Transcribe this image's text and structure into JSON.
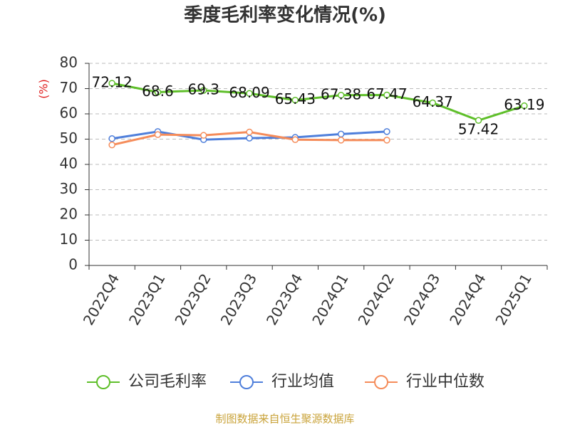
{
  "chart_data": {
    "type": "line",
    "title": "季度毛利率变化情况(%)",
    "y_label": "(%)",
    "categories": [
      "2022Q4",
      "2023Q1",
      "2023Q2",
      "2023Q3",
      "2023Q4",
      "2024Q1",
      "2024Q2",
      "2024Q3",
      "2024Q4",
      "2025Q1"
    ],
    "series": [
      {
        "name": "公司毛利率",
        "color": "#5fbf2a",
        "values": [
          72.12,
          68.6,
          69.3,
          68.09,
          65.43,
          67.38,
          67.47,
          64.37,
          57.42,
          63.19
        ],
        "show_labels": true
      },
      {
        "name": "行业均值",
        "color": "#4f7fdb",
        "values": [
          50.2,
          53.0,
          49.8,
          50.4,
          50.7,
          52.0,
          53.0,
          null,
          null,
          null
        ]
      },
      {
        "name": "行业中位数",
        "color": "#f58c5a",
        "values": [
          47.7,
          51.8,
          51.5,
          52.8,
          49.8,
          49.6,
          49.6,
          null,
          null,
          null
        ]
      }
    ],
    "ylim": [
      0,
      80
    ],
    "yticks": [
      0,
      10,
      20,
      30,
      40,
      50,
      60,
      70,
      80
    ],
    "grid": true,
    "source": "制图数据来自恒生聚源数据库"
  }
}
